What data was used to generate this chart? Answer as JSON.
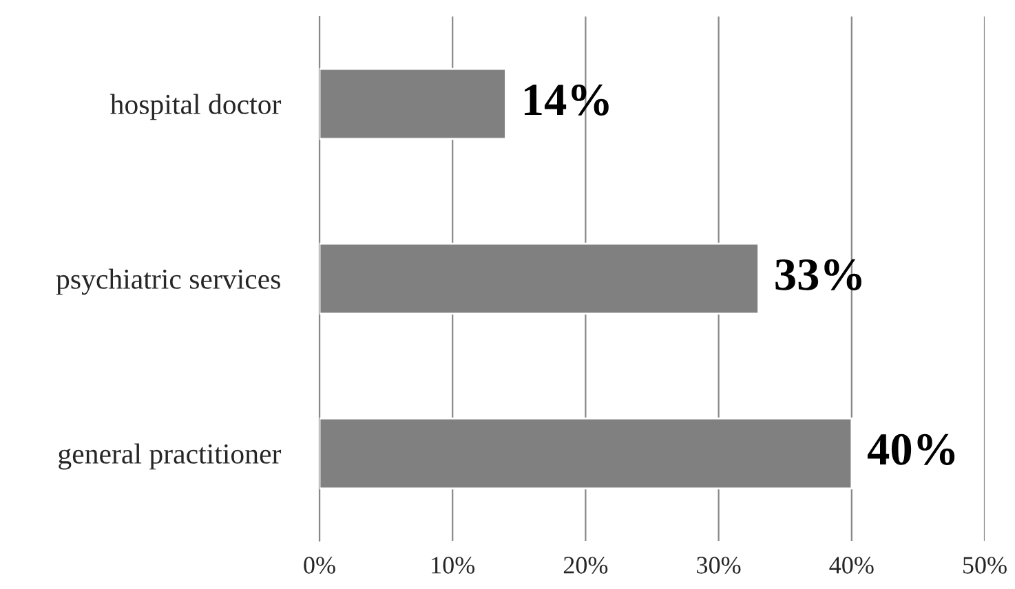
{
  "chart_data": {
    "type": "bar",
    "orientation": "horizontal",
    "categories": [
      "hospital doctor",
      "psychiatric services",
      "general practitioner"
    ],
    "values": [
      14,
      33,
      40
    ],
    "color": "#808080",
    "value_labels": [
      "14%",
      "33%",
      "40%"
    ],
    "xlim": [
      0,
      50
    ],
    "xticks": [
      {
        "value": 0,
        "label": "0%"
      },
      {
        "value": 10,
        "label": "10%"
      },
      {
        "value": 20,
        "label": "20%"
      },
      {
        "value": 30,
        "label": "30%"
      },
      {
        "value": 40,
        "label": "40%"
      },
      {
        "value": 50,
        "label": "50%"
      }
    ],
    "grid": "x",
    "legend": false
  }
}
